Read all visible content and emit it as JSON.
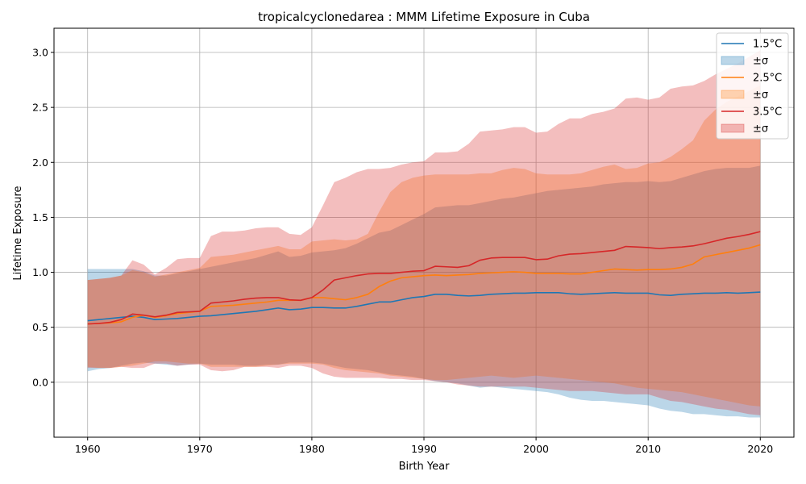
{
  "chart_data": {
    "type": "area",
    "title": "tropicalcyclonedarea : MMM Lifetime Exposure in Cuba",
    "xlabel": "Birth Year",
    "ylabel": "Lifetime Exposure",
    "xlim": [
      1957,
      2023
    ],
    "ylim": [
      -0.5,
      3.22
    ],
    "x_ticks": [
      1960,
      1970,
      1980,
      1990,
      2000,
      2010,
      2020
    ],
    "y_ticks": [
      0.0,
      0.5,
      1.0,
      1.5,
      2.0,
      2.5,
      3.0
    ],
    "y_tick_labels": [
      "0.0",
      "0.5",
      "1.0",
      "1.5",
      "2.0",
      "2.5",
      "3.0"
    ],
    "grid": true,
    "legend_position": "top-right",
    "x": [
      1960,
      1961,
      1962,
      1963,
      1964,
      1965,
      1966,
      1967,
      1968,
      1969,
      1970,
      1971,
      1972,
      1973,
      1974,
      1975,
      1976,
      1977,
      1978,
      1979,
      1980,
      1981,
      1982,
      1983,
      1984,
      1985,
      1986,
      1987,
      1988,
      1989,
      1990,
      1991,
      1992,
      1993,
      1994,
      1995,
      1996,
      1997,
      1998,
      1999,
      2000,
      2001,
      2002,
      2003,
      2004,
      2005,
      2006,
      2007,
      2008,
      2009,
      2010,
      2011,
      2012,
      2013,
      2014,
      2015,
      2016,
      2017,
      2018,
      2019,
      2020
    ],
    "series": [
      {
        "name": "1.5°C",
        "band_label": "±σ",
        "color": "#1f77b4",
        "band_color": "#a6c8e3",
        "mean": [
          0.56,
          0.57,
          0.58,
          0.59,
          0.6,
          0.59,
          0.57,
          0.575,
          0.58,
          0.59,
          0.6,
          0.605,
          0.615,
          0.625,
          0.635,
          0.645,
          0.66,
          0.675,
          0.66,
          0.665,
          0.68,
          0.68,
          0.675,
          0.675,
          0.69,
          0.71,
          0.73,
          0.73,
          0.75,
          0.77,
          0.78,
          0.8,
          0.8,
          0.79,
          0.785,
          0.79,
          0.8,
          0.805,
          0.81,
          0.81,
          0.815,
          0.815,
          0.815,
          0.805,
          0.8,
          0.805,
          0.81,
          0.815,
          0.81,
          0.81,
          0.81,
          0.795,
          0.79,
          0.8,
          0.805,
          0.81,
          0.81,
          0.815,
          0.81,
          0.815,
          0.82
        ],
        "upper": [
          1.03,
          1.03,
          1.03,
          1.03,
          1.03,
          1.01,
          0.97,
          0.97,
          0.99,
          1.01,
          1.03,
          1.05,
          1.07,
          1.09,
          1.11,
          1.13,
          1.16,
          1.19,
          1.14,
          1.15,
          1.18,
          1.19,
          1.2,
          1.22,
          1.26,
          1.31,
          1.36,
          1.38,
          1.43,
          1.48,
          1.53,
          1.59,
          1.6,
          1.61,
          1.61,
          1.63,
          1.65,
          1.67,
          1.68,
          1.7,
          1.72,
          1.74,
          1.75,
          1.76,
          1.77,
          1.78,
          1.8,
          1.81,
          1.82,
          1.82,
          1.83,
          1.82,
          1.83,
          1.86,
          1.89,
          1.92,
          1.94,
          1.95,
          1.95,
          1.95,
          1.97
        ],
        "lower": [
          0.1,
          0.12,
          0.13,
          0.15,
          0.17,
          0.18,
          0.17,
          0.16,
          0.15,
          0.16,
          0.17,
          0.16,
          0.16,
          0.16,
          0.15,
          0.15,
          0.16,
          0.16,
          0.18,
          0.18,
          0.18,
          0.17,
          0.15,
          0.13,
          0.12,
          0.11,
          0.09,
          0.07,
          0.06,
          0.05,
          0.03,
          0.01,
          0.0,
          -0.01,
          -0.03,
          -0.05,
          -0.04,
          -0.05,
          -0.06,
          -0.07,
          -0.08,
          -0.09,
          -0.11,
          -0.14,
          -0.16,
          -0.17,
          -0.17,
          -0.18,
          -0.19,
          -0.2,
          -0.21,
          -0.24,
          -0.26,
          -0.27,
          -0.29,
          -0.29,
          -0.3,
          -0.31,
          -0.31,
          -0.32,
          -0.32
        ]
      },
      {
        "name": "2.5°C",
        "band_label": "±σ",
        "color": "#ff7f0e",
        "band_color": "#ffc899",
        "mean": [
          0.53,
          0.535,
          0.54,
          0.55,
          0.59,
          0.61,
          0.59,
          0.605,
          0.625,
          0.635,
          0.645,
          0.69,
          0.695,
          0.7,
          0.71,
          0.72,
          0.73,
          0.745,
          0.745,
          0.745,
          0.77,
          0.77,
          0.76,
          0.75,
          0.77,
          0.8,
          0.87,
          0.92,
          0.95,
          0.96,
          0.97,
          0.975,
          0.97,
          0.975,
          0.98,
          0.99,
          0.995,
          1.0,
          1.005,
          1.0,
          0.99,
          0.99,
          0.99,
          0.985,
          0.985,
          1.0,
          1.015,
          1.03,
          1.025,
          1.02,
          1.025,
          1.025,
          1.03,
          1.045,
          1.075,
          1.14,
          1.16,
          1.18,
          1.2,
          1.22,
          1.25
        ],
        "upper": [
          0.93,
          0.94,
          0.95,
          0.97,
          1.02,
          1.0,
          0.96,
          0.98,
          1.0,
          1.02,
          1.04,
          1.14,
          1.15,
          1.16,
          1.18,
          1.2,
          1.22,
          1.24,
          1.21,
          1.21,
          1.28,
          1.29,
          1.3,
          1.29,
          1.3,
          1.35,
          1.55,
          1.73,
          1.82,
          1.86,
          1.88,
          1.89,
          1.89,
          1.89,
          1.89,
          1.9,
          1.9,
          1.93,
          1.95,
          1.94,
          1.9,
          1.89,
          1.89,
          1.89,
          1.9,
          1.93,
          1.96,
          1.98,
          1.94,
          1.95,
          1.99,
          2.0,
          2.05,
          2.12,
          2.2,
          2.38,
          2.48,
          2.55,
          2.6,
          2.65,
          2.7
        ],
        "lower": [
          0.14,
          0.13,
          0.13,
          0.14,
          0.15,
          0.17,
          0.19,
          0.19,
          0.18,
          0.17,
          0.17,
          0.14,
          0.14,
          0.14,
          0.14,
          0.14,
          0.15,
          0.16,
          0.17,
          0.17,
          0.17,
          0.16,
          0.13,
          0.11,
          0.1,
          0.09,
          0.08,
          0.06,
          0.05,
          0.04,
          0.03,
          0.02,
          0.02,
          0.03,
          0.04,
          0.05,
          0.06,
          0.05,
          0.04,
          0.05,
          0.06,
          0.05,
          0.04,
          0.03,
          0.02,
          0.01,
          0.0,
          -0.01,
          -0.03,
          -0.05,
          -0.06,
          -0.07,
          -0.08,
          -0.09,
          -0.11,
          -0.13,
          -0.15,
          -0.17,
          -0.19,
          -0.21,
          -0.22
        ]
      },
      {
        "name": "3.5°C",
        "band_label": "±σ",
        "color": "#d62728",
        "band_color": "#eea6a7",
        "mean": [
          0.53,
          0.535,
          0.545,
          0.57,
          0.62,
          0.61,
          0.595,
          0.61,
          0.635,
          0.64,
          0.645,
          0.72,
          0.73,
          0.74,
          0.755,
          0.765,
          0.77,
          0.77,
          0.75,
          0.745,
          0.77,
          0.84,
          0.93,
          0.95,
          0.97,
          0.985,
          0.99,
          0.99,
          1.0,
          1.01,
          1.015,
          1.055,
          1.05,
          1.045,
          1.06,
          1.11,
          1.13,
          1.135,
          1.135,
          1.135,
          1.115,
          1.12,
          1.15,
          1.165,
          1.17,
          1.18,
          1.19,
          1.2,
          1.235,
          1.23,
          1.225,
          1.215,
          1.225,
          1.23,
          1.24,
          1.26,
          1.285,
          1.31,
          1.325,
          1.345,
          1.37
        ],
        "upper": [
          0.93,
          0.94,
          0.95,
          0.97,
          1.11,
          1.07,
          0.98,
          1.04,
          1.12,
          1.13,
          1.13,
          1.33,
          1.37,
          1.37,
          1.38,
          1.4,
          1.41,
          1.41,
          1.35,
          1.34,
          1.41,
          1.61,
          1.82,
          1.86,
          1.91,
          1.94,
          1.94,
          1.95,
          1.98,
          2.0,
          2.01,
          2.09,
          2.09,
          2.1,
          2.17,
          2.28,
          2.29,
          2.3,
          2.32,
          2.32,
          2.27,
          2.28,
          2.35,
          2.4,
          2.4,
          2.44,
          2.46,
          2.49,
          2.58,
          2.59,
          2.57,
          2.59,
          2.67,
          2.69,
          2.7,
          2.74,
          2.8,
          2.85,
          2.9,
          2.96,
          3.02
        ],
        "lower": [
          0.13,
          0.13,
          0.13,
          0.14,
          0.13,
          0.13,
          0.17,
          0.17,
          0.15,
          0.16,
          0.16,
          0.11,
          0.1,
          0.11,
          0.14,
          0.14,
          0.14,
          0.13,
          0.15,
          0.15,
          0.13,
          0.08,
          0.05,
          0.04,
          0.04,
          0.04,
          0.04,
          0.03,
          0.03,
          0.02,
          0.02,
          0.01,
          0.0,
          -0.02,
          -0.03,
          -0.04,
          -0.04,
          -0.04,
          -0.04,
          -0.04,
          -0.05,
          -0.06,
          -0.07,
          -0.08,
          -0.08,
          -0.08,
          -0.09,
          -0.1,
          -0.11,
          -0.11,
          -0.11,
          -0.14,
          -0.17,
          -0.18,
          -0.2,
          -0.22,
          -0.24,
          -0.25,
          -0.27,
          -0.29,
          -0.3
        ]
      }
    ]
  }
}
